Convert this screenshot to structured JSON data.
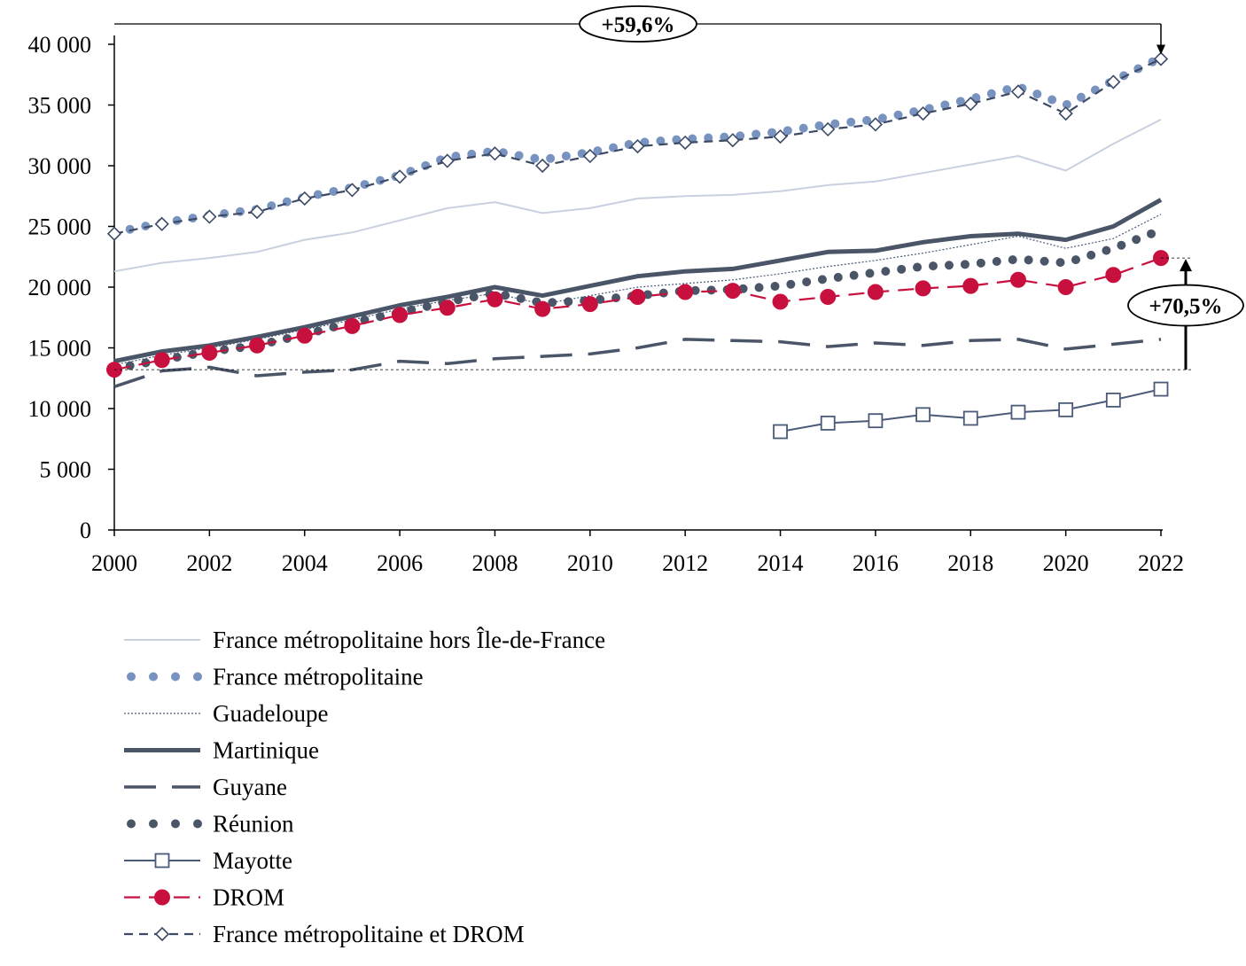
{
  "chart_data": {
    "type": "line",
    "title": "",
    "xlabel": "",
    "ylabel": "",
    "x": [
      2000,
      2001,
      2002,
      2003,
      2004,
      2005,
      2006,
      2007,
      2008,
      2009,
      2010,
      2011,
      2012,
      2013,
      2014,
      2015,
      2016,
      2017,
      2018,
      2019,
      2020,
      2021,
      2022
    ],
    "xticks": [
      "2000",
      "2002",
      "2004",
      "2006",
      "2008",
      "2010",
      "2012",
      "2014",
      "2016",
      "2018",
      "2020",
      "2022"
    ],
    "yticks": [
      "0",
      "5 000",
      "10 000",
      "15 000",
      "20 000",
      "25 000",
      "30 000",
      "35 000",
      "40 000"
    ],
    "ylim": [
      0,
      40000
    ],
    "grid": false,
    "legend_position": "bottom",
    "series": [
      {
        "name": "France métropolitaine hors Île-de-France",
        "color": "#c9d0df",
        "style": "thin-solid",
        "values": [
          21300,
          22000,
          22400,
          22900,
          23900,
          24500,
          25500,
          26500,
          27000,
          26100,
          26500,
          27300,
          27500,
          27600,
          27900,
          28400,
          28700,
          29400,
          30100,
          30800,
          29600,
          31800,
          33800
        ]
      },
      {
        "name": "France métropolitaine",
        "color": "#7893bf",
        "style": "dotted-big",
        "values": [
          24500,
          25300,
          25900,
          26400,
          27400,
          28200,
          29200,
          30700,
          31200,
          30500,
          31100,
          31900,
          32200,
          32400,
          32800,
          33400,
          33800,
          34600,
          35500,
          36500,
          35000,
          37000,
          38900
        ]
      },
      {
        "name": "Guadeloupe",
        "color": "#4a5a78",
        "style": "thin-dotted",
        "values": [
          13600,
          14400,
          15000,
          15700,
          16500,
          17300,
          18200,
          18900,
          19500,
          18600,
          19300,
          20000,
          20300,
          20600,
          21100,
          21700,
          22200,
          22800,
          23500,
          24200,
          23200,
          24000,
          26000
        ]
      },
      {
        "name": "Martinique",
        "color": "#4a5568",
        "style": "thick-solid",
        "values": [
          13900,
          14700,
          15200,
          15900,
          16700,
          17600,
          18500,
          19200,
          20000,
          19300,
          20100,
          20900,
          21300,
          21500,
          22200,
          22900,
          23000,
          23700,
          24200,
          24400,
          23900,
          25000,
          27200
        ]
      },
      {
        "name": "Guyane",
        "color": "#4a5568",
        "style": "long-dash",
        "values": [
          11800,
          13100,
          13400,
          12700,
          13000,
          13200,
          13900,
          13700,
          14100,
          14300,
          14500,
          15000,
          15700,
          15600,
          15500,
          15100,
          15400,
          15200,
          15600,
          15700,
          14900,
          15300,
          15700
        ]
      },
      {
        "name": "Réunion",
        "color": "#4a5568",
        "style": "dotted-big",
        "values": [
          13300,
          14000,
          14700,
          15200,
          16100,
          17100,
          17900,
          18800,
          19500,
          18700,
          18900,
          19300,
          19700,
          19800,
          20100,
          20700,
          21200,
          21700,
          21900,
          22300,
          22000,
          23200,
          24700
        ]
      },
      {
        "name": "Mayotte",
        "color": "#4a5a78",
        "style": "square-markers",
        "values": [
          null,
          null,
          null,
          null,
          null,
          null,
          null,
          null,
          null,
          null,
          null,
          null,
          null,
          null,
          8100,
          8800,
          9000,
          9500,
          9200,
          9700,
          9900,
          10700,
          11600
        ]
      },
      {
        "name": "DROM",
        "color": "#c8103e",
        "style": "dash-circle",
        "values": [
          13200,
          14000,
          14600,
          15200,
          16000,
          16800,
          17700,
          18300,
          19000,
          18200,
          18600,
          19200,
          19600,
          19700,
          18800,
          19200,
          19600,
          19900,
          20100,
          20600,
          20000,
          21000,
          22400
        ]
      },
      {
        "name": "France métropolitaine et DROM",
        "color": "#3d4a66",
        "style": "dash-diamond",
        "values": [
          24400,
          25200,
          25800,
          26200,
          27300,
          28000,
          29100,
          30400,
          31000,
          30000,
          30800,
          31600,
          31900,
          32100,
          32400,
          33000,
          33400,
          34300,
          35100,
          36100,
          34300,
          36900,
          38800
        ]
      }
    ],
    "annotations": {
      "top_label": "+59,6%",
      "right_label": "+70,5%"
    }
  }
}
